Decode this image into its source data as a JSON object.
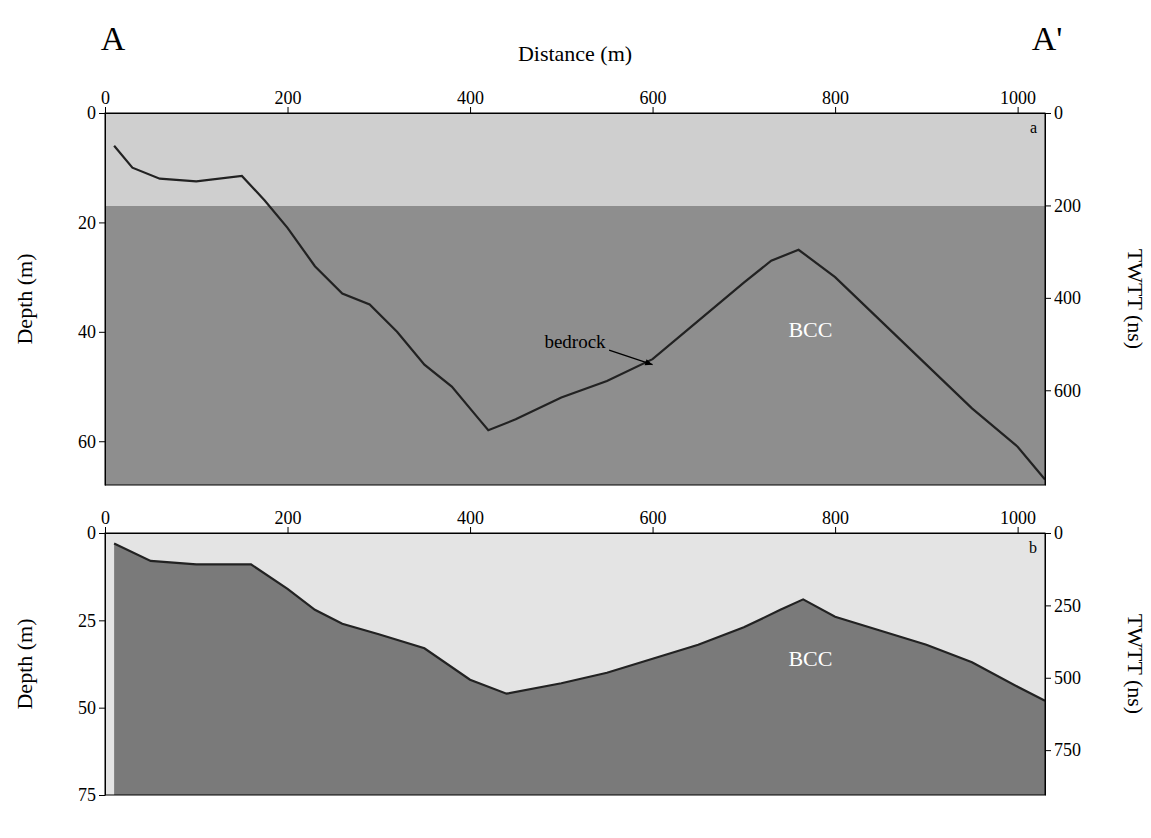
{
  "chart_data": [
    {
      "type": "line",
      "profile_labels": [
        "A",
        "A'"
      ],
      "panel_label": "a",
      "x_label": "Distance (m)",
      "y_label": "Depth (m)",
      "y2_label": "TWTT (ns)",
      "xlim": [
        0,
        1030
      ],
      "xticks": [
        0,
        200,
        400,
        600,
        800,
        1000
      ],
      "ylim": [
        0,
        68
      ],
      "yticks": [
        0,
        20,
        40,
        60
      ],
      "y2lim": [
        0,
        805
      ],
      "y2ticks": [
        0,
        200,
        400,
        600
      ],
      "x": [
        10,
        30,
        60,
        100,
        150,
        175,
        200,
        230,
        260,
        290,
        320,
        350,
        380,
        410,
        420,
        450,
        500,
        550,
        600,
        650,
        700,
        730,
        760,
        800,
        850,
        900,
        950,
        1000,
        1030
      ],
      "series": [
        {
          "color": "#222222",
          "values": [
            6,
            10,
            12,
            12.5,
            11.5,
            16,
            21,
            28,
            33,
            35,
            40,
            46,
            50,
            56,
            58,
            56,
            52,
            49,
            45,
            38,
            31,
            27,
            25,
            30,
            38,
            46,
            54,
            61,
            67
          ]
        }
      ],
      "annotations": [
        {
          "text": "bedrock",
          "x": 515,
          "y": 43,
          "arrow_x": 600,
          "arrow_y": 46
        },
        {
          "text": "BCC",
          "x": 773,
          "y": 41
        }
      ]
    },
    {
      "type": "line",
      "panel_label": "b",
      "y_label": "Depth (m)",
      "y2_label": "TWTT (ns)",
      "xlim": [
        0,
        1030
      ],
      "xticks": [
        0,
        200,
        400,
        600,
        800,
        1000
      ],
      "ylim": [
        0,
        75
      ],
      "yticks": [
        0,
        25,
        50,
        75
      ],
      "y2lim": [
        0,
        905
      ],
      "y2ticks": [
        0,
        250,
        500,
        750
      ],
      "x": [
        10,
        50,
        100,
        160,
        200,
        230,
        260,
        300,
        350,
        400,
        440,
        500,
        550,
        600,
        650,
        700,
        740,
        765,
        800,
        850,
        900,
        950,
        1000,
        1030
      ],
      "series": [
        {
          "color": "#222222",
          "values": [
            3,
            8,
            9,
            9,
            16,
            22,
            26,
            29,
            33,
            42,
            46,
            43,
            40,
            36,
            32,
            27,
            22,
            19,
            24,
            28,
            32,
            37,
            44,
            48
          ]
        }
      ],
      "annotations": [
        {
          "text": "BCC",
          "x": 773,
          "y": 38
        }
      ]
    }
  ]
}
